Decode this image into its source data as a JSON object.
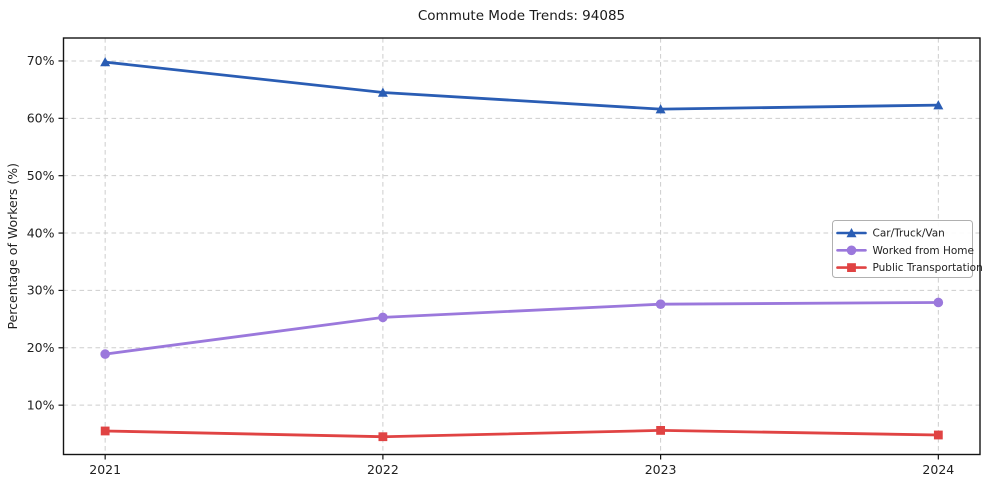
{
  "figure": {
    "title": "Commute Mode Trends: 94085"
  },
  "chart_data": {
    "type": "line",
    "title": "Commute Mode Trends: 94085",
    "xlabel": "",
    "ylabel": "Percentage of Workers (%)",
    "x": [
      "2021",
      "2022",
      "2023",
      "2024"
    ],
    "series": [
      {
        "name": "Car/Truck/Van",
        "marker": "triangle",
        "color": "#2a5db4",
        "values": [
          69.8,
          64.5,
          61.6,
          62.3
        ]
      },
      {
        "name": "Worked from Home",
        "marker": "circle",
        "color": "#9b78dc",
        "values": [
          18.9,
          25.3,
          27.6,
          27.9
        ]
      },
      {
        "name": "Public Transportation",
        "marker": "square",
        "color": "#e04343",
        "values": [
          5.5,
          4.5,
          5.6,
          4.8
        ]
      }
    ],
    "yticks": [
      10,
      20,
      30,
      40,
      50,
      60,
      70
    ],
    "ytick_suffix": "%",
    "ylim": [
      1.4,
      74
    ],
    "xlim": [
      -0.15,
      3.15
    ],
    "grid": true,
    "grid_style": "dashed",
    "legend_position": "center-right",
    "colors": {
      "grid": "#cdcdcd",
      "spine": "#141414",
      "tick_label": "#1f1f1f",
      "legend_border": "#b0b0b0",
      "legend_bg": "#ffffff"
    }
  }
}
